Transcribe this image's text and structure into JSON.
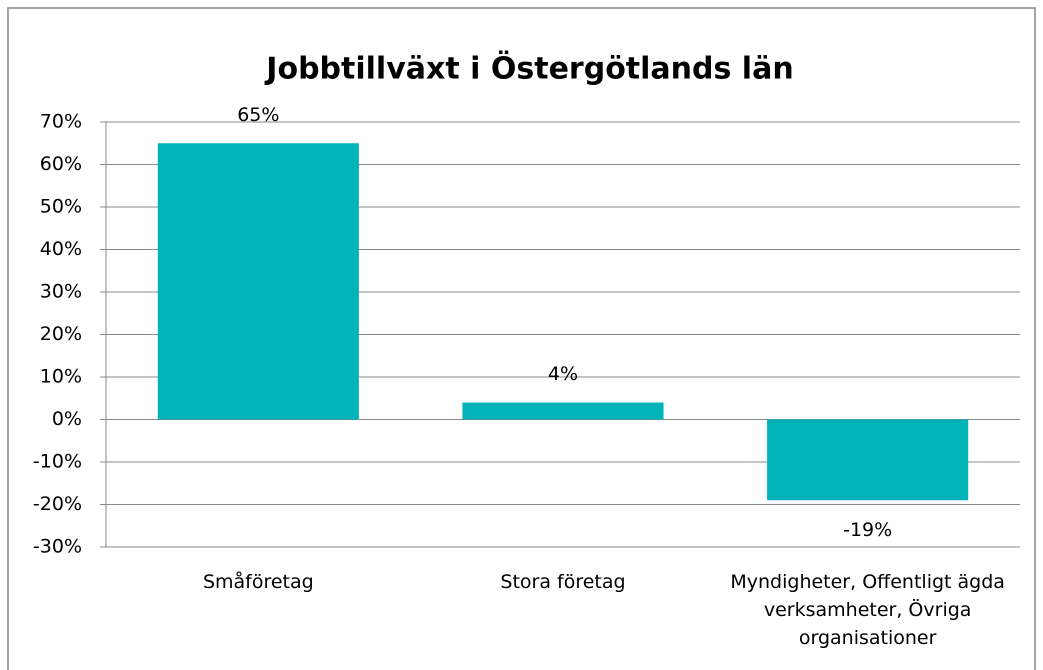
{
  "chart_data": {
    "type": "bar",
    "title": "Jobbtillväxt i Östergötlands län",
    "categories": [
      "Småföretag",
      "Stora företag",
      "Myndigheter, Offentligt ägda verksamheter, Övriga organisationer"
    ],
    "values": [
      65,
      4,
      -19
    ],
    "value_labels": [
      "65%",
      "4%",
      "-19%"
    ],
    "color": "#00b3b8",
    "ylim": [
      -30,
      70
    ],
    "yticks": [
      {
        "value": -30,
        "label": "-30%"
      },
      {
        "value": -20,
        "label": "-20%"
      },
      {
        "value": -10,
        "label": "-10%"
      },
      {
        "value": 0,
        "label": "0%"
      },
      {
        "value": 10,
        "label": "10%"
      },
      {
        "value": 20,
        "label": "20%"
      },
      {
        "value": 30,
        "label": "30%"
      },
      {
        "value": 40,
        "label": "40%"
      },
      {
        "value": 50,
        "label": "50%"
      },
      {
        "value": 60,
        "label": "60%"
      },
      {
        "value": 70,
        "label": "70%"
      }
    ],
    "grid": true
  }
}
